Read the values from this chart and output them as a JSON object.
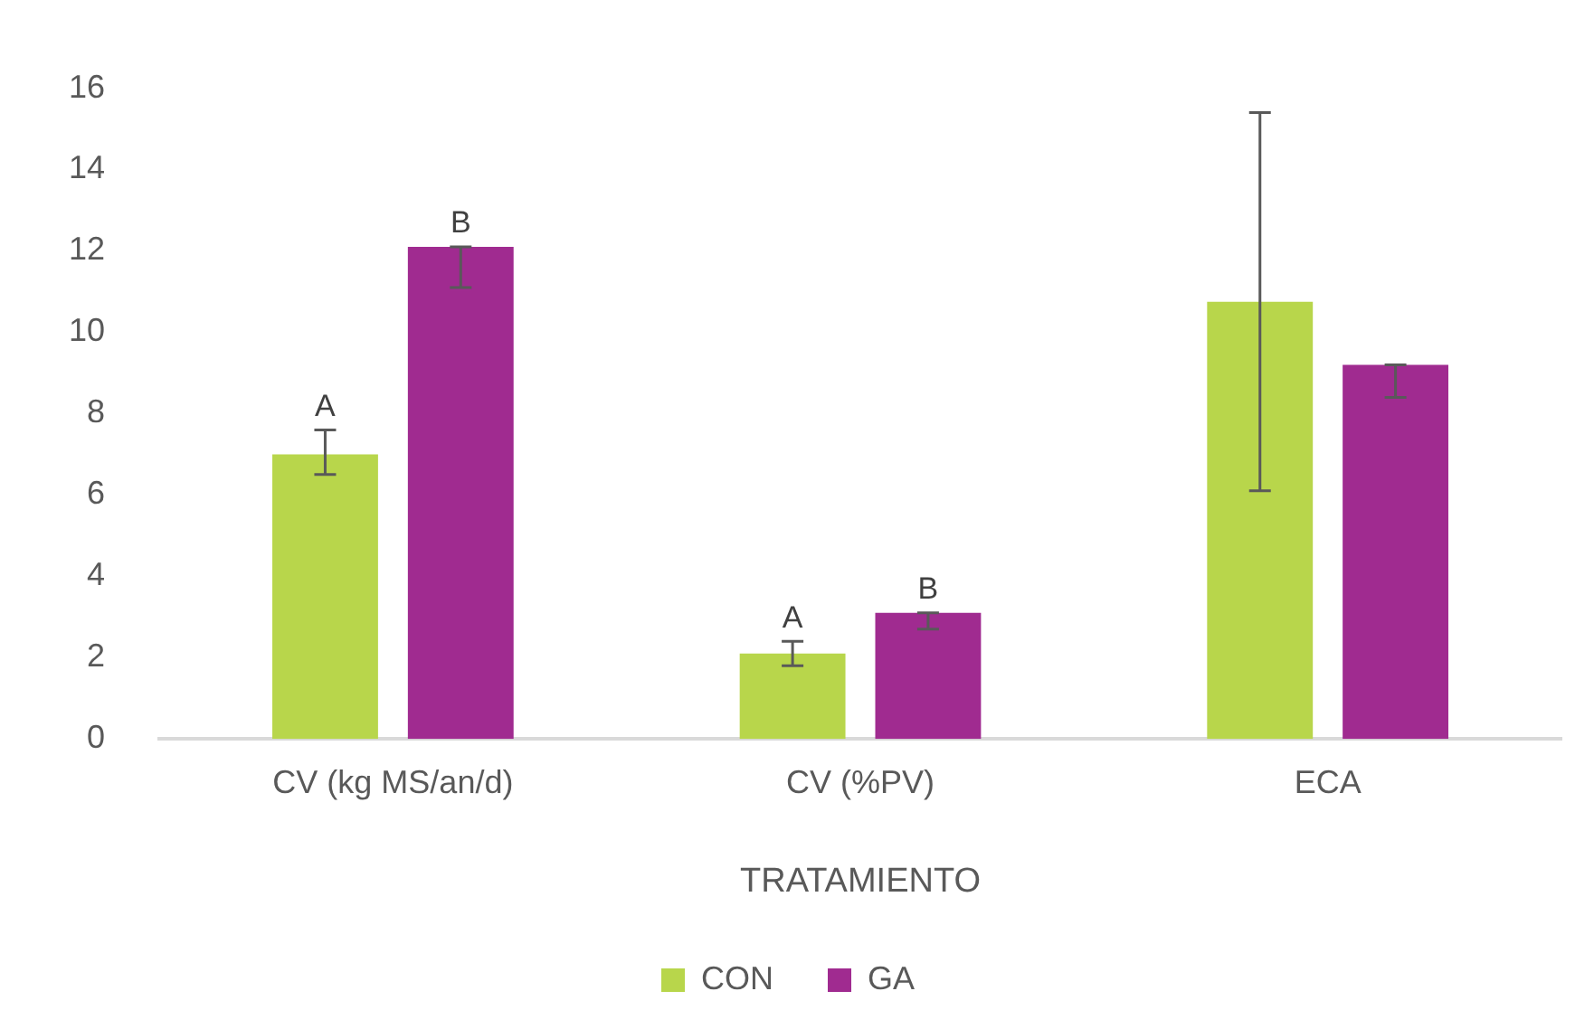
{
  "chart_data": {
    "type": "bar",
    "xlabel": "TRATAMIENTO",
    "categories": [
      "CV (kg MS/an/d)",
      "CV (%PV)",
      "ECA"
    ],
    "series": [
      {
        "name": "CON",
        "color": "#b8d64b",
        "values": [
          7.0,
          2.1,
          10.75
        ],
        "errors": [
          [
            6.5,
            7.6
          ],
          [
            1.8,
            2.4
          ],
          [
            6.1,
            15.4
          ]
        ],
        "value_labels": [
          "A",
          "A",
          null
        ]
      },
      {
        "name": "GA",
        "color": "#a02b90",
        "values": [
          12.1,
          3.1,
          9.2
        ],
        "errors": [
          [
            11.1,
            12.1
          ],
          [
            2.7,
            3.1
          ],
          [
            8.4,
            9.2
          ]
        ],
        "value_labels": [
          "B",
          "B",
          null
        ]
      }
    ],
    "ylim": [
      0,
      16
    ],
    "yticks": [
      0,
      2,
      4,
      6,
      8,
      10,
      12,
      14,
      16
    ],
    "grid": false,
    "legend": "bottom"
  }
}
